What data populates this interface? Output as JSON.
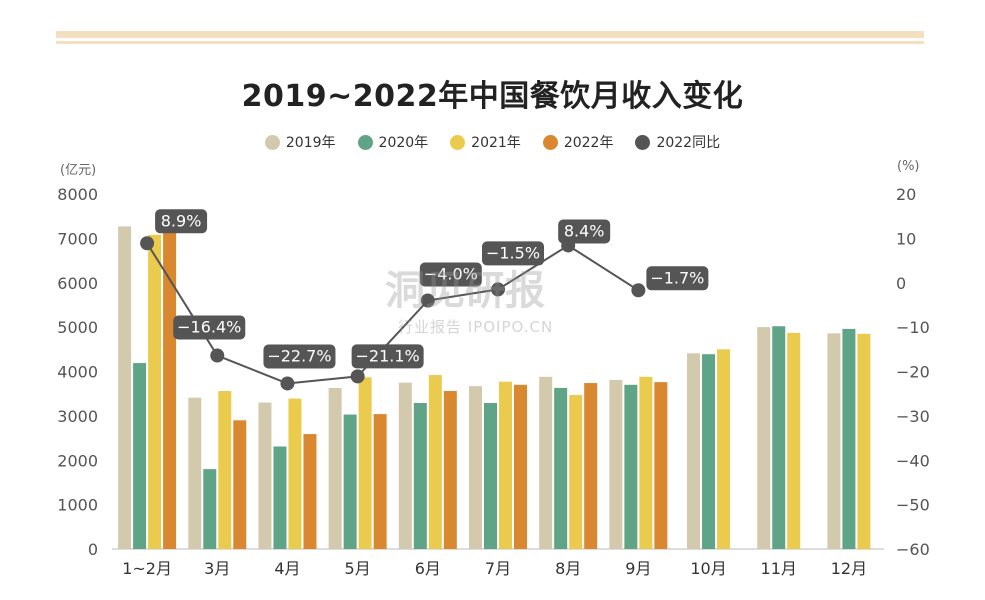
{
  "title": "2019~2022年中国餐饮月收入变化",
  "left_unit": "(亿元)",
  "right_unit": "(%)",
  "watermark": {
    "main": "洞见研报",
    "sub": "行业报告 IPOIPO.CN"
  },
  "colors": {
    "2019": "#d3c9ad",
    "2020": "#5fa487",
    "2021": "#ebcb4e",
    "2022": "#d9882f",
    "yoy": "#555555"
  },
  "chart_data": {
    "type": "bar",
    "categories": [
      "1~2月",
      "3月",
      "4月",
      "5月",
      "6月",
      "7月",
      "8月",
      "9月",
      "10月",
      "11月",
      "12月"
    ],
    "series": [
      {
        "name": "2019年",
        "key": "2019",
        "values": [
          7270,
          3410,
          3300,
          3630,
          3750,
          3670,
          3880,
          3810,
          4410,
          5000,
          4860
        ]
      },
      {
        "name": "2020年",
        "key": "2020",
        "values": [
          4190,
          1800,
          2310,
          3030,
          3290,
          3290,
          3630,
          3700,
          4390,
          5020,
          4960
        ]
      },
      {
        "name": "2021年",
        "key": "2021",
        "values": [
          7080,
          3560,
          3390,
          3870,
          3920,
          3770,
          3470,
          3880,
          4500,
          4870,
          4850
        ]
      },
      {
        "name": "2022年",
        "key": "2022",
        "values": [
          7590,
          2900,
          2590,
          3040,
          3560,
          3700,
          3740,
          3760,
          null,
          null,
          null
        ]
      }
    ],
    "line": {
      "name": "2022同比",
      "values": [
        8.9,
        -16.4,
        -22.7,
        -21.1,
        -4.0,
        -1.5,
        8.4,
        -1.7
      ],
      "labels": [
        "8.9%",
        "-16.4%",
        "-22.7%",
        "-21.1%",
        "-4.0%",
        "-1.5%",
        "8.4%",
        "-1.7%"
      ]
    },
    "y_left": {
      "min": 0,
      "max": 8000,
      "ticks": [
        "0",
        "1000",
        "2000",
        "3000",
        "4000",
        "5000",
        "6000",
        "7000",
        "8000"
      ]
    },
    "y_right": {
      "min": -60,
      "max": 20,
      "ticks": [
        "-60",
        "-50",
        "-40",
        "-30",
        "-20",
        "-10",
        "0",
        "10",
        "20"
      ]
    },
    "legend_position": "top-center",
    "grid": false
  }
}
